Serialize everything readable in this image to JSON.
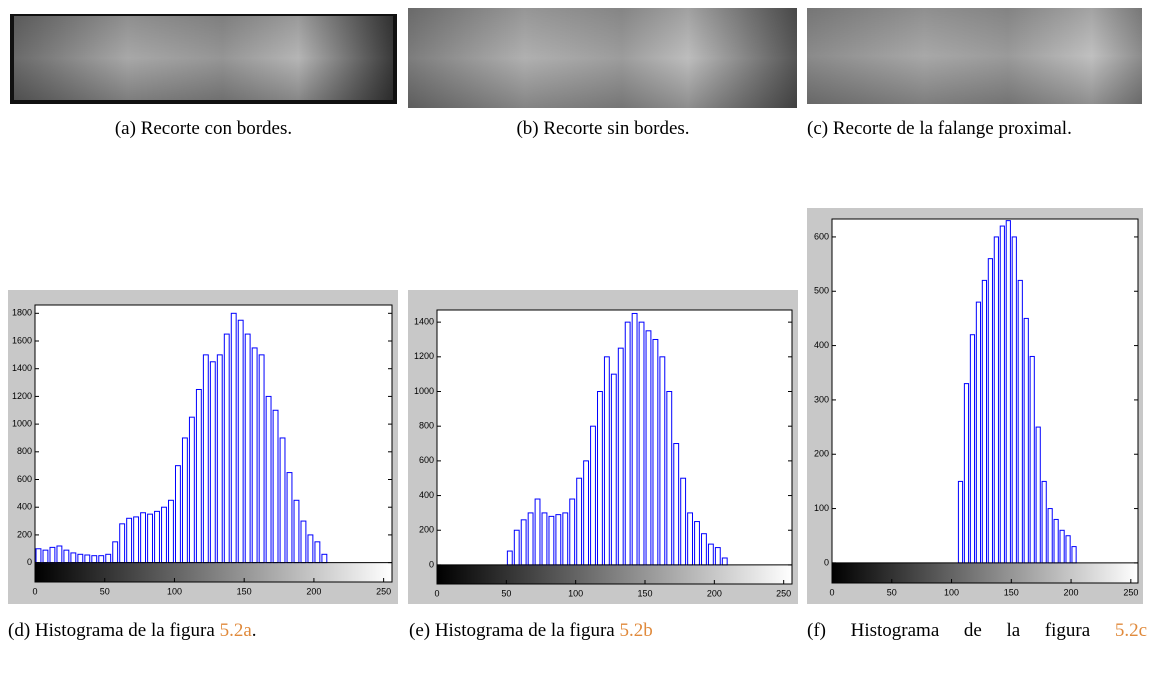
{
  "subfigures": [
    {
      "caption": "(a) Recorte con bordes."
    },
    {
      "caption": "(b) Recorte sin bordes."
    },
    {
      "caption": "(c) Recorte de la falange proximal."
    },
    {
      "caption": "(d) Histograma de la figura",
      "ref": "5.2a",
      "suffix": "."
    },
    {
      "caption": "(e) Histograma de la figura",
      "ref": "5.2b"
    },
    {
      "caption": "(f) Histograma de la figura",
      "ref": "5.2c"
    }
  ],
  "chart_data": [
    {
      "type": "histogram",
      "color": "#0000ff",
      "bins": [
        0,
        5,
        10,
        15,
        20,
        25,
        30,
        35,
        40,
        45,
        50,
        55,
        60,
        65,
        70,
        75,
        80,
        85,
        90,
        95,
        100,
        105,
        110,
        115,
        120,
        125,
        130,
        135,
        140,
        145,
        150,
        155,
        160,
        165,
        170,
        175,
        180,
        185,
        190,
        195,
        200,
        205,
        210,
        215,
        220,
        225,
        230,
        235,
        240,
        245,
        250,
        255
      ],
      "values": [
        100,
        90,
        110,
        120,
        90,
        70,
        60,
        55,
        50,
        50,
        60,
        150,
        280,
        320,
        330,
        360,
        350,
        370,
        400,
        450,
        700,
        900,
        1050,
        1250,
        1500,
        1450,
        1500,
        1650,
        1800,
        1750,
        1650,
        1550,
        1500,
        1200,
        1100,
        900,
        650,
        450,
        300,
        200,
        150,
        60,
        0,
        0,
        0,
        0,
        0,
        0,
        0,
        0,
        0
      ],
      "xlim": [
        0,
        256
      ],
      "xticks": [
        0,
        50,
        100,
        150,
        200,
        250
      ],
      "ylim": [
        -140,
        1860
      ],
      "yticks": [
        0,
        200,
        400,
        600,
        800,
        1000,
        1200,
        1400,
        1600,
        1800
      ]
    },
    {
      "type": "histogram",
      "color": "#0000ff",
      "bins": [
        0,
        5,
        10,
        15,
        20,
        25,
        30,
        35,
        40,
        45,
        50,
        55,
        60,
        65,
        70,
        75,
        80,
        85,
        90,
        95,
        100,
        105,
        110,
        115,
        120,
        125,
        130,
        135,
        140,
        145,
        150,
        155,
        160,
        165,
        170,
        175,
        180,
        185,
        190,
        195,
        200,
        205,
        210,
        215,
        220,
        225,
        230,
        235,
        240,
        245,
        250,
        255
      ],
      "values": [
        0,
        0,
        0,
        0,
        0,
        0,
        0,
        0,
        0,
        0,
        80,
        200,
        260,
        300,
        380,
        300,
        280,
        290,
        300,
        380,
        500,
        600,
        800,
        1000,
        1200,
        1100,
        1250,
        1400,
        1450,
        1400,
        1350,
        1300,
        1200,
        1000,
        700,
        500,
        300,
        250,
        180,
        120,
        100,
        40,
        0,
        0,
        0,
        0,
        0,
        0,
        0,
        0,
        0
      ],
      "xlim": [
        0,
        256
      ],
      "xticks": [
        0,
        50,
        100,
        150,
        200,
        250
      ],
      "ylim": [
        -110,
        1470
      ],
      "yticks": [
        0,
        200,
        400,
        600,
        800,
        1000,
        1200,
        1400
      ]
    },
    {
      "type": "histogram",
      "color": "#0000ff",
      "bins": [
        0,
        5,
        10,
        15,
        20,
        25,
        30,
        35,
        40,
        45,
        50,
        55,
        60,
        65,
        70,
        75,
        80,
        85,
        90,
        95,
        100,
        105,
        110,
        115,
        120,
        125,
        130,
        135,
        140,
        145,
        150,
        155,
        160,
        165,
        170,
        175,
        180,
        185,
        190,
        195,
        200,
        205,
        210,
        215,
        220,
        225,
        230,
        235,
        240,
        245,
        250,
        255
      ],
      "values": [
        0,
        0,
        0,
        0,
        0,
        0,
        0,
        0,
        0,
        0,
        0,
        0,
        0,
        0,
        0,
        0,
        0,
        0,
        0,
        0,
        0,
        150,
        330,
        420,
        480,
        520,
        560,
        600,
        620,
        630,
        600,
        520,
        450,
        380,
        250,
        150,
        100,
        80,
        60,
        50,
        30,
        0,
        0,
        0,
        0,
        0,
        0,
        0,
        0,
        0,
        0
      ],
      "xlim": [
        0,
        256
      ],
      "xticks": [
        0,
        50,
        100,
        150,
        200,
        250
      ],
      "ylim": [
        -37,
        633
      ],
      "yticks": [
        0,
        100,
        200,
        300,
        400,
        500,
        600
      ]
    }
  ]
}
